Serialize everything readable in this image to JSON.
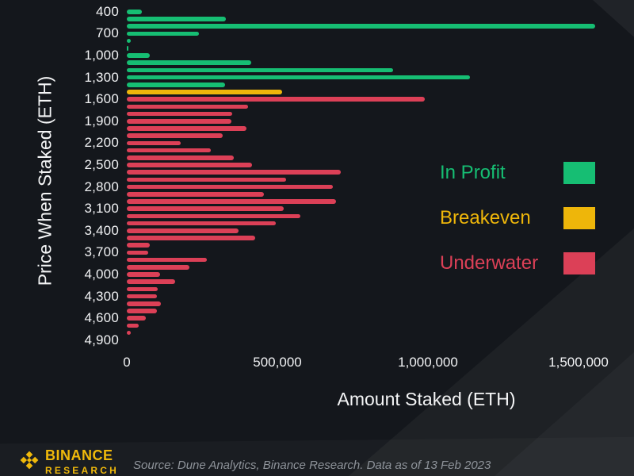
{
  "colors": {
    "in_profit": "#16be73",
    "breakeven": "#eeb60a",
    "underwater": "#dc4057",
    "background": "#14171c",
    "axis_text": "#f2f3f5",
    "source_text": "#8e939a",
    "brand": "#f0b90b"
  },
  "chart_data": {
    "type": "bar",
    "orientation": "horizontal",
    "xlabel": "Amount Staked (ETH)",
    "ylabel": "Price When Staked (ETH)",
    "xlim": [
      0,
      1580000
    ],
    "grid": false,
    "x_ticks": [
      0,
      500000,
      1000000,
      1500000
    ],
    "x_tick_labels": [
      "0",
      "500,000",
      "1,000,000",
      "1,500,000"
    ],
    "y_tick_labels": [
      "400",
      "700",
      "1,000",
      "1,300",
      "1,600",
      "1,900",
      "2,200",
      "2,500",
      "2,800",
      "3,100",
      "3,400",
      "3,700",
      "4,000",
      "4,300",
      "4,600",
      "4,900"
    ],
    "categories": [
      400,
      500,
      600,
      700,
      800,
      900,
      1000,
      1100,
      1200,
      1300,
      1400,
      1500,
      1600,
      1700,
      1800,
      1900,
      2000,
      2100,
      2200,
      2300,
      2400,
      2500,
      2600,
      2700,
      2800,
      2900,
      3000,
      3100,
      3200,
      3300,
      3400,
      3500,
      3600,
      3700,
      3800,
      3900,
      4000,
      4100,
      4200,
      4300,
      4400,
      4500,
      4600,
      4700,
      4800,
      4900
    ],
    "values": [
      50000,
      330000,
      1555000,
      240000,
      14000,
      4000,
      75000,
      413000,
      885000,
      1140000,
      327000,
      515000,
      990000,
      403000,
      350000,
      347000,
      397000,
      318000,
      179000,
      279000,
      355000,
      416000,
      710000,
      530000,
      684000,
      455000,
      695000,
      522000,
      575000,
      496000,
      370000,
      425000,
      77000,
      70000,
      265000,
      208000,
      110000,
      161000,
      103000,
      101000,
      114000,
      100000,
      63000,
      40000,
      12000,
      0
    ],
    "statuses": [
      "in_profit",
      "in_profit",
      "in_profit",
      "in_profit",
      "in_profit",
      "in_profit",
      "in_profit",
      "in_profit",
      "in_profit",
      "in_profit",
      "in_profit",
      "breakeven",
      "underwater",
      "underwater",
      "underwater",
      "underwater",
      "underwater",
      "underwater",
      "underwater",
      "underwater",
      "underwater",
      "underwater",
      "underwater",
      "underwater",
      "underwater",
      "underwater",
      "underwater",
      "underwater",
      "underwater",
      "underwater",
      "underwater",
      "underwater",
      "underwater",
      "underwater",
      "underwater",
      "underwater",
      "underwater",
      "underwater",
      "underwater",
      "underwater",
      "underwater",
      "underwater",
      "underwater",
      "underwater",
      "underwater",
      "underwater"
    ],
    "legend": [
      {
        "label": "In Profit",
        "color_key": "in_profit"
      },
      {
        "label": "Breakeven",
        "color_key": "breakeven"
      },
      {
        "label": "Underwater",
        "color_key": "underwater"
      }
    ],
    "legend_position": "right"
  },
  "footer": {
    "brand_line1": "BINANCE",
    "brand_line2": "RESEARCH",
    "source": "Source: Dune Analytics, Binance Research. Data as of 13 Feb 2023"
  }
}
